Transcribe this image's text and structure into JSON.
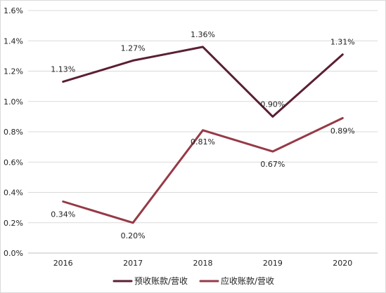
{
  "chart_data": {
    "type": "line",
    "categories": [
      "2016",
      "2017",
      "2018",
      "2019",
      "2020"
    ],
    "ylim": [
      0,
      1.6
    ],
    "yticks": [
      0,
      0.2,
      0.4,
      0.6,
      0.8,
      1.0,
      1.2,
      1.4,
      1.6
    ],
    "ytick_labels": [
      "0.0%",
      "0.2%",
      "0.4%",
      "0.6%",
      "0.8%",
      "1.0%",
      "1.2%",
      "1.4%",
      "1.6%"
    ],
    "grid": "horizontal",
    "legend_position": "bottom",
    "series": [
      {
        "name": "预收账款/营收",
        "color": "#5b1f33",
        "values": [
          1.13,
          1.27,
          1.36,
          0.9,
          1.31
        ],
        "data_labels": [
          "1.13%",
          "1.27%",
          "1.36%",
          "0.90%",
          "1.31%"
        ]
      },
      {
        "name": "应收账款/营收",
        "color": "#963a47",
        "values": [
          0.34,
          0.2,
          0.81,
          0.67,
          0.89
        ],
        "data_labels": [
          "0.34%",
          "0.20%",
          "0.81%",
          "0.67%",
          "0.89%"
        ]
      }
    ]
  }
}
